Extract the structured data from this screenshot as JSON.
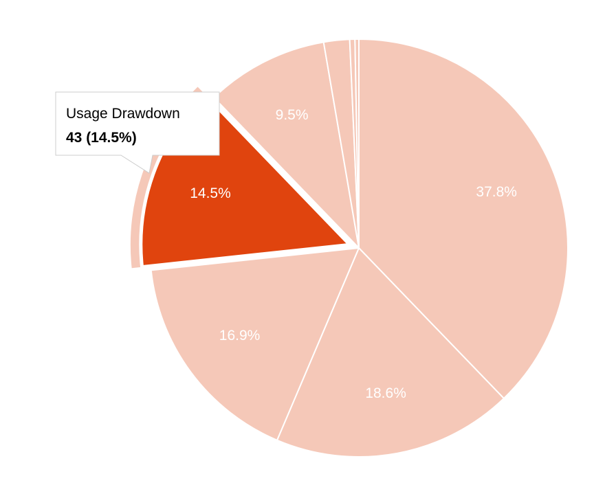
{
  "chart_data": {
    "type": "pie",
    "title": "",
    "colors": {
      "slice": "#f5c8b8",
      "highlight": "#e0440e",
      "border": "#ffffff",
      "label": "#ffffff"
    },
    "slices": [
      {
        "value": 37.8,
        "label": "37.8%"
      },
      {
        "value": 18.6,
        "label": "18.6%"
      },
      {
        "value": 16.9,
        "label": "16.9%"
      },
      {
        "value": 14.5,
        "label": "14.5%",
        "name": "Usage Drawdown",
        "count": 43,
        "highlighted": true
      },
      {
        "value": 9.5,
        "label": "9.5%"
      },
      {
        "value": 2.0,
        "label": ""
      },
      {
        "value": 0.4,
        "label": ""
      },
      {
        "value": 0.3,
        "label": ""
      }
    ],
    "tooltip": {
      "title": "Usage Drawdown",
      "value": "43 (14.5%)"
    }
  }
}
